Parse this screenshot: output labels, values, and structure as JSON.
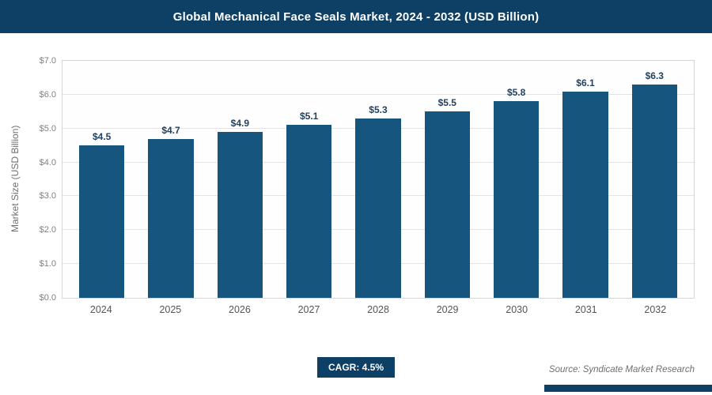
{
  "header": {
    "title": "Global Mechanical Face Seals Market, 2024 - 2032 (USD Billion)"
  },
  "chart_data": {
    "type": "bar",
    "title": "Global Mechanical Face Seals Market, 2024 - 2032 (USD Billion)",
    "categories": [
      "2024",
      "2025",
      "2026",
      "2027",
      "2028",
      "2029",
      "2030",
      "2031",
      "2032"
    ],
    "values": [
      4.5,
      4.7,
      4.9,
      5.1,
      5.3,
      5.5,
      5.8,
      6.1,
      6.3
    ],
    "value_labels": [
      "$4.5",
      "$4.7",
      "$4.9",
      "$5.1",
      "$5.3",
      "$5.5",
      "$5.8",
      "$6.1",
      "$6.3"
    ],
    "xlabel": "",
    "ylabel": "Market Size (USD Billion)",
    "ylim": [
      0,
      7.0
    ],
    "ytick_step": 1.0,
    "ytick_labels": [
      "$0.0",
      "$1.0",
      "$2.0",
      "$3.0",
      "$4.0",
      "$5.0",
      "$6.0",
      "$7.0"
    ],
    "grid": true,
    "legend": false,
    "value_prefix": "$"
  },
  "footer": {
    "cagr_label": "CAGR: 4.5%",
    "source": "Source: Syndicate Market Research"
  },
  "colors": {
    "header_bg": "#0e4066",
    "bar": "#16567e",
    "badge_bg": "#0e4066",
    "accent_bar": "#0e4066",
    "grid": "#e4e4e4",
    "tick_text": "#808080"
  }
}
